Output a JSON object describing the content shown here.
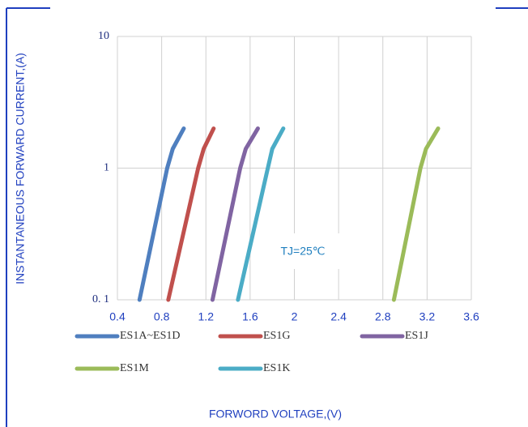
{
  "chart_data": {
    "type": "line",
    "xlabel": "FORWORD VOLTAGE,(V)",
    "ylabel": "INSTANTANEOUS FORWARD CURRENT,(A)",
    "annotation": "TJ=25℃",
    "xlim": [
      0.4,
      3.6
    ],
    "xticks": [
      0.4,
      0.8,
      1.2,
      1.6,
      2,
      2.4,
      2.8,
      3.2,
      3.6
    ],
    "ylim": [
      0.1,
      10
    ],
    "yticks": [
      {
        "value": 0.1,
        "label": "0. 1"
      },
      1,
      10
    ],
    "log_y": true,
    "grid": true,
    "series": [
      {
        "name": "ES1A~ES1D",
        "color": "#4f7fbf",
        "x": [
          0.6,
          0.85,
          0.9,
          1.0
        ],
        "values": [
          0.1,
          1,
          1.4,
          2
        ]
      },
      {
        "name": "ES1G",
        "color": "#c0504d",
        "x": [
          0.86,
          1.13,
          1.18,
          1.27
        ],
        "values": [
          0.1,
          1,
          1.4,
          2
        ]
      },
      {
        "name": "ES1J",
        "color": "#8064a2",
        "x": [
          1.26,
          1.51,
          1.56,
          1.67
        ],
        "values": [
          0.1,
          1,
          1.4,
          2
        ]
      },
      {
        "name": "ES1M",
        "color": "#9bbb59",
        "x": [
          2.9,
          3.14,
          3.19,
          3.3
        ],
        "values": [
          0.1,
          1,
          1.4,
          2
        ]
      },
      {
        "name": "ES1K",
        "color": "#4bacc6",
        "x": [
          1.49,
          1.76,
          1.8,
          1.9
        ],
        "values": [
          0.1,
          1,
          1.4,
          2
        ]
      }
    ]
  }
}
